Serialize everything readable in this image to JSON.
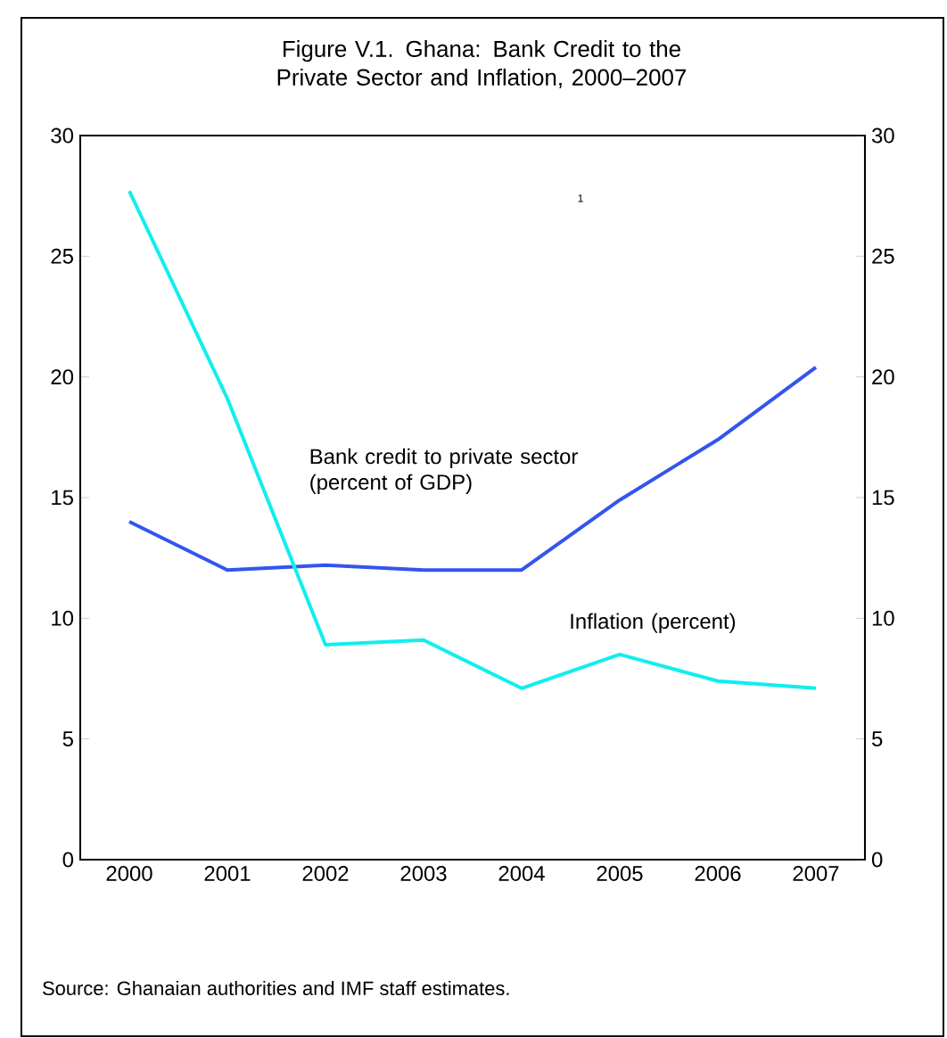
{
  "chart_data": {
    "type": "line",
    "title": "Figure V.1. Ghana: Bank Credit to the Private Sector and Inflation, 2000–2007",
    "categories": [
      "2000",
      "2001",
      "2002",
      "2003",
      "2004",
      "2005",
      "2006",
      "2007"
    ],
    "series": [
      {
        "name": "Bank credit to private sector (percent of GDP)",
        "color": "#3355ee",
        "values": [
          14.0,
          12.0,
          12.2,
          12.0,
          12.0,
          14.9,
          17.4,
          20.4
        ]
      },
      {
        "name": "Inflation (percent)",
        "color": "#11eeee",
        "values": [
          27.7,
          19.1,
          8.9,
          9.1,
          7.1,
          8.5,
          7.4,
          7.1
        ]
      }
    ],
    "ylim": [
      0,
      30
    ],
    "yticks": [
      0,
      5,
      10,
      15,
      20,
      25,
      30
    ],
    "y2lim": [
      0,
      30
    ],
    "y2ticks": [
      0,
      5,
      10,
      15,
      20,
      25,
      30
    ],
    "grid": false,
    "marker": "none",
    "line_style": "solid",
    "annotations": [
      "1",
      "Source:  Ghanaian authorities and IMF staff estimates."
    ]
  }
}
